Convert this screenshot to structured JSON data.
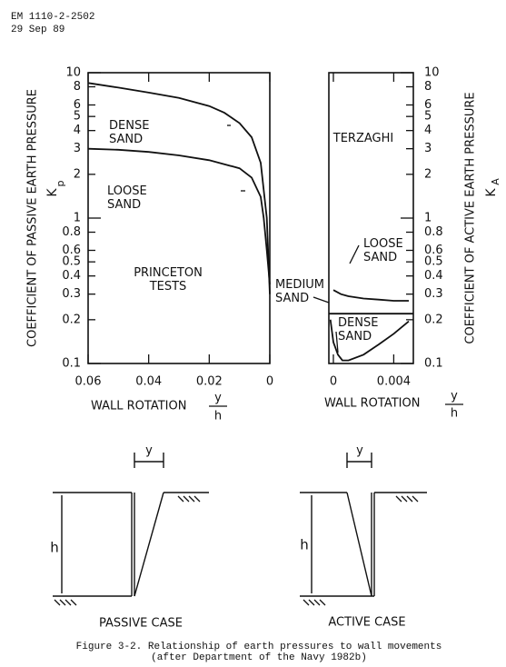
{
  "header": {
    "doc": "EM 1110-2-2502",
    "date": "29 Sep 89"
  },
  "chart_data": [
    {
      "type": "line",
      "log_y": true,
      "ylabel": "COEFFICIENT OF PASSIVE EARTH PRESSURE",
      "ysymbol": "K",
      "ysubscript": "p",
      "xlabel": "WALL ROTATION",
      "xfraction": [
        "y",
        "h"
      ],
      "xlim": [
        0.06,
        0
      ],
      "xticks": [
        0.06,
        0.04,
        0.02,
        0
      ],
      "ylim": [
        0.1,
        10
      ],
      "yticks": [
        0.1,
        0.2,
        0.3,
        0.4,
        0.5,
        0.6,
        0.8,
        1,
        2,
        3,
        4,
        5,
        6,
        8,
        10
      ],
      "annotations": [
        "PRINCETON TESTS"
      ],
      "series": [
        {
          "name": "DENSE SAND",
          "color": "#111111",
          "x": [
            0.06,
            0.05,
            0.04,
            0.03,
            0.02,
            0.015,
            0.01,
            0.006,
            0.003,
            0.001,
            0
          ],
          "values": [
            8.5,
            7.9,
            7.3,
            6.7,
            5.9,
            5.3,
            4.5,
            3.6,
            2.4,
            1.0,
            0.3
          ]
        },
        {
          "name": "LOOSE SAND",
          "color": "#111111",
          "x": [
            0.06,
            0.05,
            0.04,
            0.03,
            0.02,
            0.01,
            0.006,
            0.003,
            0.002,
            0.001,
            0
          ],
          "values": [
            3.0,
            2.95,
            2.85,
            2.7,
            2.5,
            2.2,
            1.9,
            1.4,
            1.0,
            0.6,
            0.35
          ]
        }
      ]
    },
    {
      "type": "line",
      "log_y": true,
      "ylabel": "COEFFICIENT OF ACTIVE EARTH PRESSURE",
      "ysymbol": "K",
      "ysubscript": "A",
      "xlabel": "WALL ROTATION",
      "xfraction": [
        "y",
        "h"
      ],
      "xlim": [
        -0.0003,
        0.0053
      ],
      "xticks": [
        0,
        0.004
      ],
      "ylim": [
        0.1,
        10
      ],
      "yticks": [
        0.1,
        0.2,
        0.3,
        0.4,
        0.5,
        0.6,
        0.8,
        1,
        2,
        3,
        4,
        5,
        6,
        8,
        10
      ],
      "annotations": [
        "TERZAGHI"
      ],
      "series": [
        {
          "name": "LOOSE SAND",
          "color": "#111111",
          "x": [
            0,
            0.0005,
            0.001,
            0.002,
            0.003,
            0.004,
            0.005
          ],
          "values": [
            0.32,
            0.3,
            0.29,
            0.28,
            0.275,
            0.27,
            0.27
          ]
        },
        {
          "name": "MEDIUM SAND",
          "color": "#111111",
          "x": [
            -0.0003,
            0.0053
          ],
          "values": [
            0.22,
            0.22
          ]
        },
        {
          "name": "DENSE SAND",
          "color": "#111111",
          "x": [
            -0.0002,
            0,
            0.0003,
            0.0006,
            0.001,
            0.002,
            0.003,
            0.004,
            0.005
          ],
          "values": [
            0.2,
            0.14,
            0.115,
            0.105,
            0.105,
            0.115,
            0.135,
            0.16,
            0.195
          ]
        }
      ]
    }
  ],
  "diagrams": [
    {
      "y": "y",
      "h": "h",
      "caption": "PASSIVE CASE"
    },
    {
      "y": "y",
      "h": "h",
      "caption": "ACTIVE CASE"
    }
  ],
  "caption": {
    "line1": "Figure 3-2.  Relationship of earth pressures to wall movements",
    "line2": "(after Department of the Navy 1982b)"
  }
}
